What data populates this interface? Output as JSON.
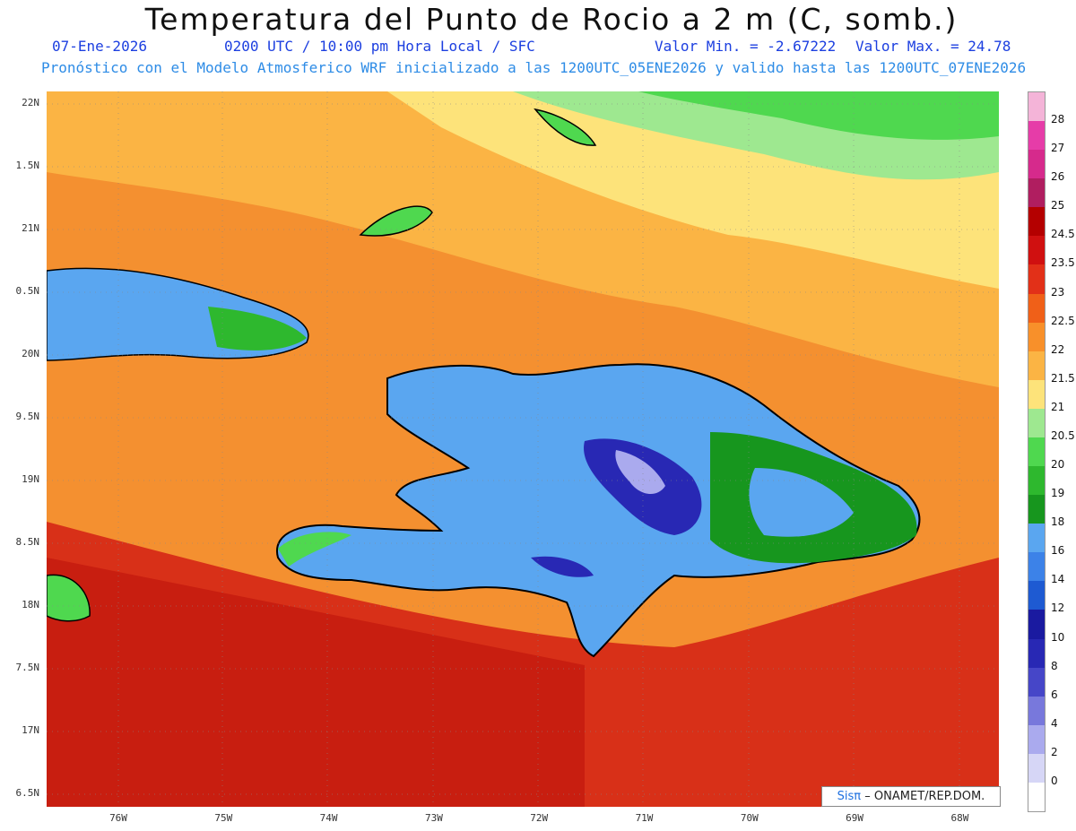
{
  "header": {
    "title": "Temperatura del Punto de Rocio a 2 m (C, somb.)",
    "date": "07-Ene-2026",
    "time": "0200 UTC / 10:00 pm Hora Local / SFC",
    "min": "Valor Min. = -2.67222",
    "max": "Valor Max. = 24.78",
    "model": "Pronóstico con el Modelo Atmosferico WRF inicializado a las 1200UTC_05ENE2026 y valido hasta las  1200UTC_07ENE2026"
  },
  "axes": {
    "lat_labels": [
      "22N",
      "1.5N",
      "21N",
      "0.5N",
      "20N",
      "9.5N",
      "19N",
      "8.5N",
      "18N",
      "7.5N",
      "17N",
      "6.5N"
    ],
    "lon_labels": [
      "76W",
      "75W",
      "74W",
      "73W",
      "72W",
      "71W",
      "70W",
      "69W",
      "68W"
    ]
  },
  "legend": {
    "levels": [
      "28",
      "27",
      "26",
      "25",
      "24.5",
      "23.5",
      "23",
      "22.5",
      "22",
      "21.5",
      "21",
      "20.5",
      "20",
      "19",
      "18",
      "16",
      "14",
      "12",
      "10",
      "8",
      "6",
      "4",
      "2",
      "0"
    ],
    "colors": [
      "#f4b4d8",
      "#e63ca8",
      "#d62a8c",
      "#b01e60",
      "#b40000",
      "#d01010",
      "#e23018",
      "#f06018",
      "#f8902a",
      "#fbb444",
      "#fde37a",
      "#9ee890",
      "#4fd84f",
      "#2eb82e",
      "#17961e",
      "#5aa6f0",
      "#3c82e8",
      "#1e5ad2",
      "#1a1aa0",
      "#2828b4",
      "#4646c8",
      "#7878dc",
      "#aaaaee",
      "#d6d6f6"
    ]
  },
  "credit": {
    "brand": "Sisπ",
    "text": "– ONAMET/REP.DOM."
  }
}
